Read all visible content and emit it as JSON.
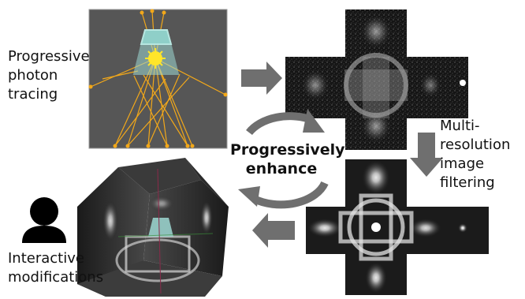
{
  "labels": {
    "photon_tracing": [
      "Progressive",
      "photon",
      "tracing"
    ],
    "filtering": [
      "Multi-",
      "resolution",
      "image",
      "filtering"
    ],
    "interactive": [
      "Interactive",
      "modifications"
    ],
    "center": [
      "Progressively",
      "enhance"
    ]
  },
  "colors": {
    "arrow": "#6f6f6f",
    "ray": "#f2a81a",
    "lamp_shade": "#9ed8d2",
    "scene_bg": "#565656"
  }
}
